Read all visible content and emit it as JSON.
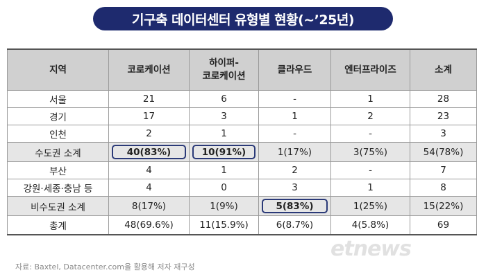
{
  "title": "기구축 데이터센터 유형별 현황(~’25년)",
  "table": {
    "headers": {
      "region": "지역",
      "colocation": "코로케이션",
      "hyper_line1": "하이퍼-",
      "hyper_line2": "코로케이션",
      "cloud": "클라우드",
      "enterprise": "엔터프라이즈",
      "subtotal": "소계"
    },
    "rows": [
      [
        "서울",
        "21",
        "6",
        "-",
        "1",
        "28"
      ],
      [
        "경기",
        "17",
        "3",
        "1",
        "2",
        "23"
      ],
      [
        "인천",
        "2",
        "1",
        "-",
        "-",
        "3"
      ],
      [
        "수도권 소계",
        "40(83%)",
        "10(91%)",
        "1(17%)",
        "3(75%)",
        "54(78%)"
      ],
      [
        "부산",
        "4",
        "1",
        "2",
        "-",
        "7"
      ],
      [
        "강원·세종·충남 등",
        "4",
        "0",
        "3",
        "1",
        "8"
      ],
      [
        "비수도권 소계",
        "8(17%)",
        "1(9%)",
        "5(83%)",
        "1(25%)",
        "15(22%)"
      ],
      [
        "총계",
        "48(69.6%)",
        "11(15.9%)",
        "6(8.7%)",
        "4(5.8%)",
        "69"
      ]
    ]
  },
  "source": "자료: Baxtel, Datacenter.com을 활용해 저자 재구성",
  "watermark": "etnews",
  "colors": {
    "title_bg": "#1e2a6e",
    "highlight": "#2b3a78",
    "header_bg": "#d0d0d0",
    "subtotal_bg": "#e6e6e6"
  }
}
